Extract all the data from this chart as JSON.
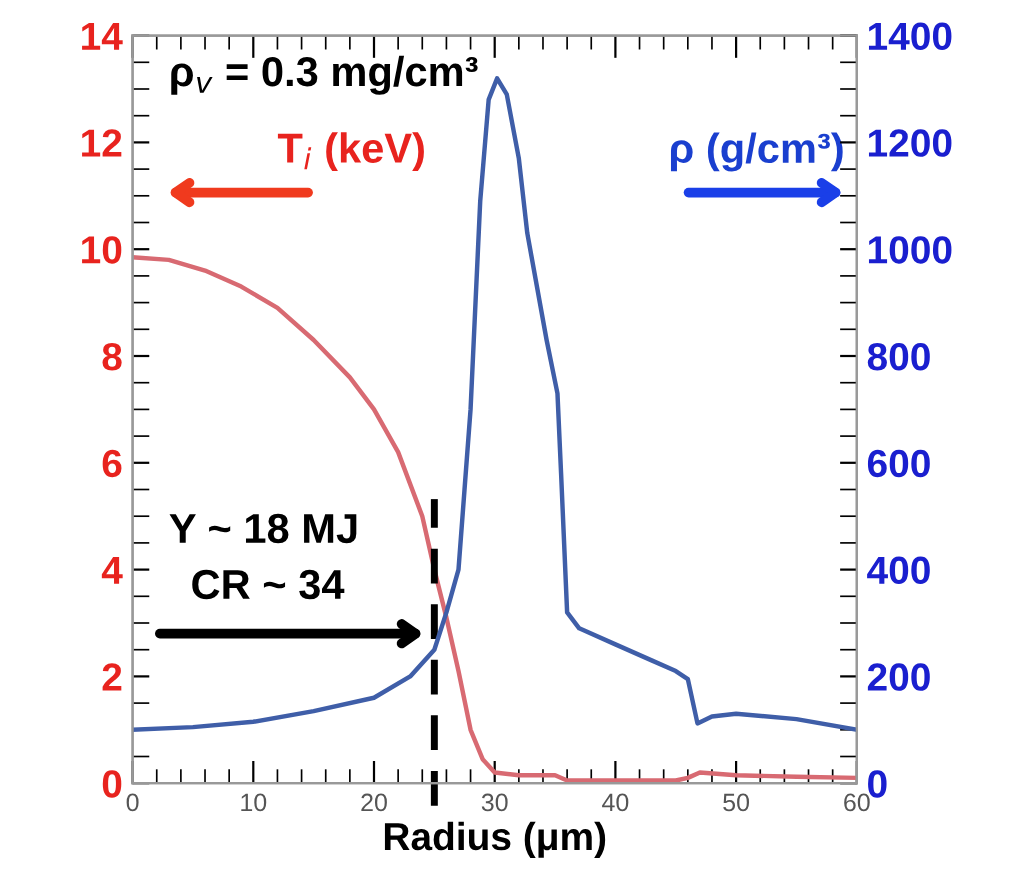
{
  "chart_data": {
    "type": "line",
    "xlabel": "Radius (μm)",
    "ylabel": "T$_{i}$ (keV)",
    "y2label": "ρ (g/cm³)",
    "xlim": [
      0,
      60
    ],
    "xticks": [
      0,
      10,
      20,
      30,
      40,
      50,
      60
    ],
    "ylim": [
      0,
      14
    ],
    "yticks": [
      0,
      2,
      4,
      6,
      8,
      10,
      12,
      14
    ],
    "y2lim": [
      0,
      1400
    ],
    "y2ticks": [
      0,
      200,
      400,
      600,
      800,
      1000,
      1200,
      1400
    ],
    "grid": false,
    "marker": "none",
    "line_style": "solid",
    "series": [
      {
        "color": "#d86a72",
        "x": [
          0,
          3,
          6,
          9,
          12,
          15,
          18,
          20,
          22,
          24,
          25,
          26,
          27,
          28,
          29,
          30,
          32,
          34,
          35,
          36,
          40,
          45,
          46,
          47,
          50,
          55,
          60
        ],
        "values": [
          9.85,
          9.8,
          9.6,
          9.3,
          8.9,
          8.3,
          7.6,
          7.0,
          6.2,
          5.0,
          4.0,
          3.1,
          2.1,
          1.0,
          0.45,
          0.2,
          0.15,
          0.15,
          0.15,
          0.05,
          0.05,
          0.05,
          0.1,
          0.2,
          0.15,
          0.12,
          0.1
        ]
      },
      {
        "color": "#3f5ea8",
        "axis": "y2",
        "x": [
          0,
          5,
          10,
          15,
          20,
          23,
          25,
          26,
          27,
          27.5,
          28,
          28.8,
          29.5,
          30.2,
          31,
          32,
          32.7,
          34.3,
          35.2,
          35.5,
          36,
          37,
          40,
          43,
          45,
          46,
          46.8,
          48,
          50,
          55,
          60
        ],
        "values": [
          100,
          105,
          115,
          135,
          160,
          200,
          250,
          320,
          400,
          550,
          700,
          1090,
          1280,
          1320,
          1290,
          1170,
          1030,
          830,
          730,
          580,
          320,
          290,
          260,
          230,
          210,
          195,
          112,
          125,
          130,
          120,
          100
        ]
      }
    ],
    "ref_lines": [
      {
        "axis": "x",
        "value": 25,
        "color": "#000000",
        "line_style": "dashed"
      }
    ],
    "annotations": [
      "ρ$_{v}$ = 0.3 mg/cm³",
      "Y ~ 18 MJ",
      "CR ~ 34"
    ]
  }
}
